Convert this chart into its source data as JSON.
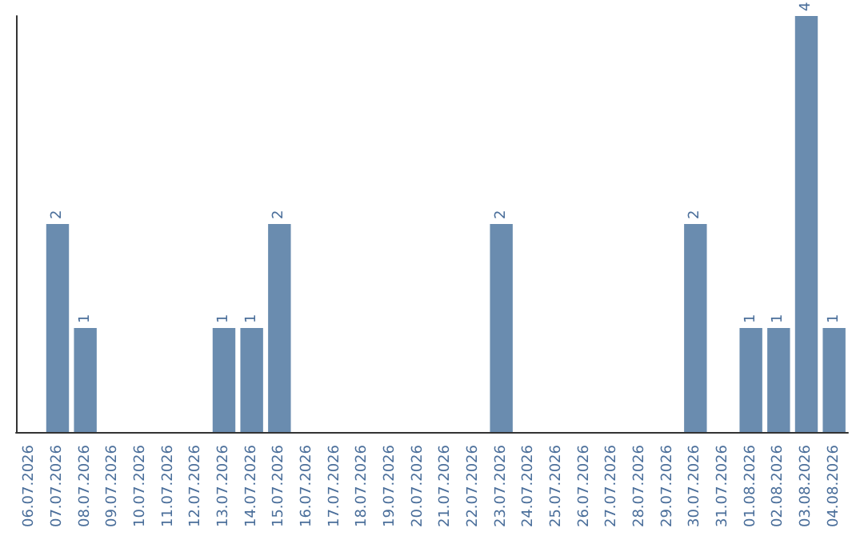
{
  "chart_data": {
    "type": "bar",
    "categories": [
      "06.07.2026",
      "07.07.2026",
      "08.07.2026",
      "09.07.2026",
      "10.07.2026",
      "11.07.2026",
      "12.07.2026",
      "13.07.2026",
      "14.07.2026",
      "15.07.2026",
      "16.07.2026",
      "17.07.2026",
      "18.07.2026",
      "19.07.2026",
      "20.07.2026",
      "21.07.2026",
      "22.07.2026",
      "23.07.2026",
      "24.07.2026",
      "25.07.2026",
      "26.07.2026",
      "27.07.2026",
      "28.07.2026",
      "29.07.2026",
      "30.07.2026",
      "31.07.2026",
      "01.08.2026",
      "02.08.2026",
      "03.08.2026",
      "04.08.2026"
    ],
    "values": [
      0,
      2,
      1,
      0,
      0,
      0,
      0,
      1,
      1,
      2,
      0,
      0,
      0,
      0,
      0,
      0,
      0,
      2,
      0,
      0,
      0,
      0,
      0,
      0,
      2,
      0,
      1,
      1,
      4,
      1
    ],
    "value_labels": [
      null,
      "2",
      "1",
      null,
      null,
      null,
      null,
      "1",
      "1",
      "2",
      null,
      null,
      null,
      null,
      null,
      null,
      null,
      "2",
      null,
      null,
      null,
      null,
      null,
      null,
      "2",
      null,
      "1",
      "1",
      "4",
      "1"
    ],
    "color": "#6a8caf",
    "tick_labels": "x"
  }
}
